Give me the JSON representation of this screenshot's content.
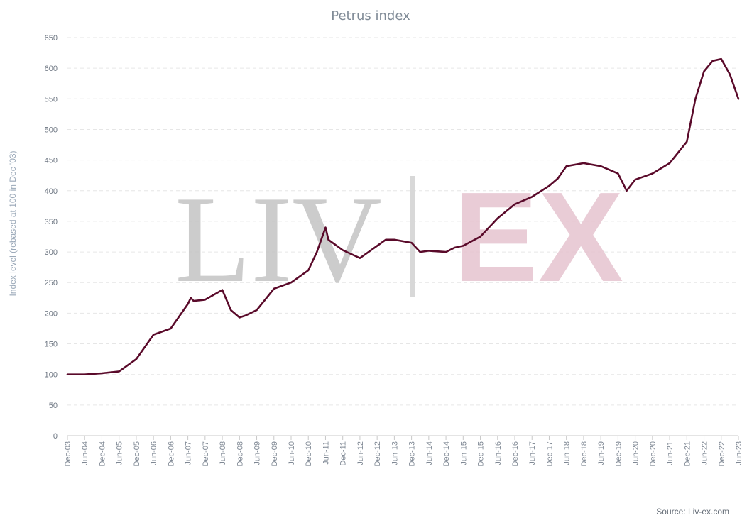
{
  "chart_data": {
    "type": "line",
    "title": "Petrus index",
    "ylabel": "Index level (rebased at 100 in Dec '03)",
    "xlabel": "",
    "ylim": [
      0,
      650
    ],
    "yticks": [
      0,
      50,
      100,
      150,
      200,
      250,
      300,
      350,
      400,
      450,
      500,
      550,
      600,
      650
    ],
    "grid": true,
    "legend": "none",
    "watermark_left": "LIV",
    "watermark_right": "EX",
    "source": "Source: Liv-ex.com",
    "colors": {
      "line": "#5a0a2a",
      "grid": "#e6e6e6",
      "watermark_gray": "#c4c4c4",
      "watermark_pink": "#e6c4cf"
    },
    "x_tick_labels": [
      "Dec-03",
      "Jun-04",
      "Dec-04",
      "Jun-05",
      "Dec-05",
      "Jun-06",
      "Dec-06",
      "Jun-07",
      "Dec-07",
      "Jun-08",
      "Dec-08",
      "Jun-09",
      "Dec-09",
      "Jun-10",
      "Dec-10",
      "Jun-11",
      "Dec-11",
      "Jun-12",
      "Dec-12",
      "Jun-13",
      "Dec-13",
      "Jun-14",
      "Dec-14",
      "Jun-15",
      "Dec-15",
      "Jun-16",
      "Dec-16",
      "Jun-17",
      "Dec-17",
      "Jun-18",
      "Dec-18",
      "Jun-19",
      "Dec-19",
      "Jun-20",
      "Dec-20",
      "Jun-21",
      "Dec-21",
      "Jun-22",
      "Dec-22",
      "Jun-23"
    ],
    "series": [
      {
        "name": "",
        "x": [
          "Dec-03",
          "Jun-04",
          "Dec-04",
          "Jun-05",
          "Dec-05",
          "Jun-06",
          "Dec-06",
          "Jun-07",
          "Jul-07",
          "Aug-07",
          "Dec-07",
          "Jun-08",
          "Sep-08",
          "Dec-08",
          "Feb-09",
          "Jun-09",
          "Dec-09",
          "Jun-10",
          "Dec-10",
          "Mar-11",
          "Jun-11",
          "Jul-11",
          "Dec-11",
          "Jun-12",
          "Dec-12",
          "Mar-13",
          "Jun-13",
          "Dec-13",
          "Mar-14",
          "Jun-14",
          "Dec-14",
          "Mar-15",
          "Jun-15",
          "Dec-15",
          "Jun-16",
          "Dec-16",
          "Jun-17",
          "Dec-17",
          "Mar-18",
          "Jun-18",
          "Dec-18",
          "Jun-19",
          "Dec-19",
          "Mar-20",
          "Jun-20",
          "Dec-20",
          "Jun-21",
          "Dec-21",
          "Mar-22",
          "Jun-22",
          "Sep-22",
          "Dec-22",
          "Mar-23",
          "Jun-23"
        ],
        "values": [
          100,
          100,
          102,
          105,
          125,
          165,
          175,
          215,
          225,
          220,
          222,
          238,
          205,
          193,
          196,
          205,
          240,
          250,
          270,
          300,
          340,
          320,
          303,
          290,
          310,
          320,
          320,
          315,
          300,
          302,
          300,
          307,
          310,
          325,
          355,
          378,
          390,
          408,
          420,
          440,
          445,
          440,
          428,
          400,
          418,
          428,
          445,
          480,
          550,
          595,
          612,
          615,
          590,
          550
        ]
      }
    ]
  }
}
